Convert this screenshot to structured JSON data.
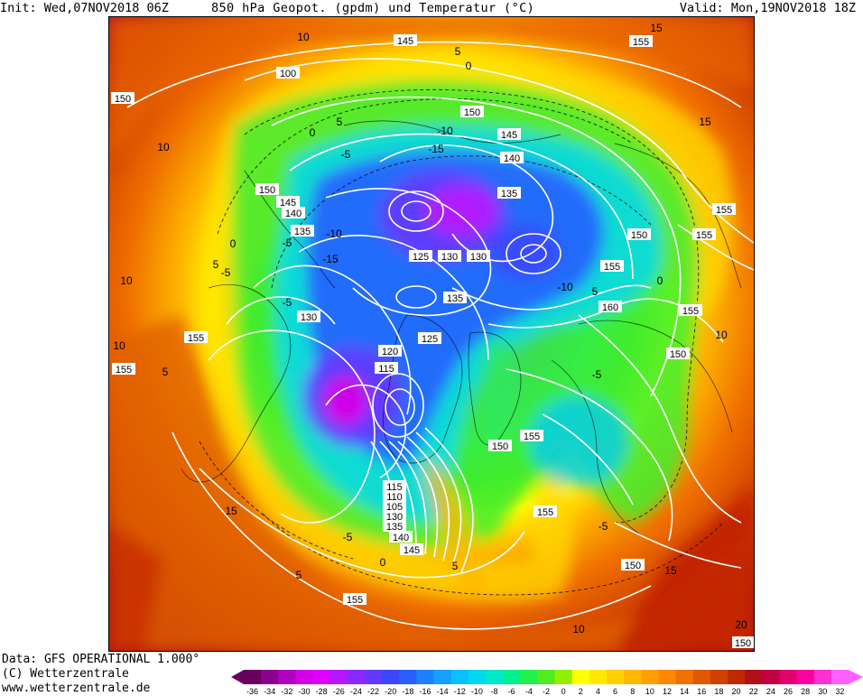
{
  "header": {
    "init": "Init: Wed,07NOV2018 06Z",
    "title": "850 hPa Geopot. (gpdm) und Temperatur (°C)",
    "valid": "Valid: Mon,19NOV2018 18Z"
  },
  "footer": {
    "data_line": "Data: GFS OPERATIONAL 1.000°",
    "copyright": "(C) Wetterzentrale",
    "url": "www.wetterzentrale.de"
  },
  "legend": {
    "ticks": [
      "-36",
      "-34",
      "-32",
      "-30",
      "-28",
      "-26",
      "-24",
      "-22",
      "-20",
      "-18",
      "-16",
      "-14",
      "-12",
      "-10",
      "-8",
      "-6",
      "-4",
      "-2",
      "0",
      "2",
      "4",
      "6",
      "8",
      "10",
      "12",
      "14",
      "16",
      "18",
      "20",
      "22",
      "24",
      "26",
      "28",
      "30",
      "32"
    ],
    "colors": [
      "#6a0060",
      "#8b0090",
      "#b000c0",
      "#d400e8",
      "#e000ff",
      "#b418ff",
      "#8c28ff",
      "#6438ff",
      "#3c46ff",
      "#2860ff",
      "#1e80ff",
      "#14a0ff",
      "#0ac0ff",
      "#00d8f0",
      "#00e8c8",
      "#00f090",
      "#20f050",
      "#50ec20",
      "#90f000",
      "#ffff00",
      "#ffe800",
      "#ffd000",
      "#ffb800",
      "#ffa000",
      "#ff8800",
      "#f07000",
      "#e05800",
      "#d04000",
      "#c02800",
      "#b01018",
      "#c00040",
      "#e00070",
      "#ff00a0",
      "#ff30d0",
      "#ff60ff"
    ]
  },
  "map": {
    "units": {
      "temperature": "°C",
      "geopotential": "gpdm"
    },
    "geopotential_labels": [
      "150",
      "100",
      "145",
      "155",
      "150",
      "145",
      "140",
      "150",
      "145",
      "140",
      "135",
      "135",
      "125",
      "130",
      "130",
      "135",
      "150",
      "155",
      "155",
      "155",
      "160",
      "155",
      "150",
      "130",
      "155",
      "155",
      "125",
      "120",
      "115",
      "150",
      "155",
      "115",
      "110",
      "105",
      "130",
      "135",
      "140",
      "145",
      "155",
      "150",
      "155",
      "150"
    ],
    "temperature_labels": [
      "10",
      "15",
      "5",
      "0",
      "10",
      "5",
      "0",
      "-5",
      "-10",
      "-15",
      "-5",
      "-10",
      "-15",
      "10",
      "5",
      "-5",
      "0",
      "-5",
      "-10",
      "5",
      "0",
      "-5",
      "5",
      "10",
      "15",
      "0",
      "-5",
      "5",
      "15",
      "10",
      "5",
      "-5",
      "10",
      "15",
      "20"
    ]
  }
}
